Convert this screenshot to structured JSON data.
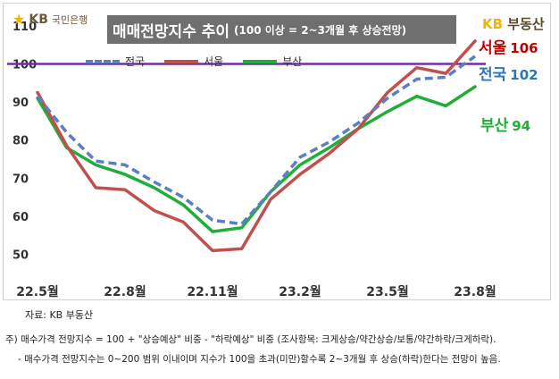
{
  "header": {
    "logo_text": "KB",
    "logo_bank": "국민은행",
    "title_main": "매매전망지수 추이",
    "title_sub": "(100 이상 = 2~3개월 후 상승전망)",
    "brand_kb": "KB",
    "brand_name": "부동산"
  },
  "colors": {
    "national": "#5a80c2",
    "seoul": "#c0504d",
    "busan": "#1fae37",
    "reference": "#7030a0",
    "title_bg": "#6f6f6f"
  },
  "end_labels": {
    "seoul": {
      "name": "서울",
      "value": "106"
    },
    "national": {
      "name": "전국",
      "value": "102"
    },
    "busan": {
      "name": "부산",
      "value": "94"
    }
  },
  "chart_data": {
    "type": "line",
    "title": "매매전망지수 추이",
    "subtitle": "(100 이상 = 2~3개월 후 상승전망)",
    "x": [
      "22.5",
      "22.6",
      "22.7",
      "22.8",
      "22.9",
      "22.10",
      "22.11",
      "22.12",
      "23.1",
      "23.2",
      "23.3",
      "23.4",
      "23.5",
      "23.6",
      "23.7",
      "23.8"
    ],
    "x_tick_labels": [
      "22.5월",
      "22.8월",
      "22.11월",
      "23.2월",
      "23.5월",
      "23.8월"
    ],
    "x_tick_index": [
      0,
      3,
      6,
      9,
      12,
      15
    ],
    "ylim": [
      45,
      113
    ],
    "y_ticks": [
      50,
      60,
      70,
      80,
      90,
      100,
      110
    ],
    "reference_line": 100,
    "grid": false,
    "legend_position": "top-left",
    "series": [
      {
        "key": "national",
        "name": "전국",
        "style": "dashed",
        "values": [
          91.5,
          82,
          74.5,
          73.5,
          69,
          65,
          59,
          58,
          66.5,
          75.5,
          79.5,
          84.5,
          91,
          96,
          96.5,
          102
        ]
      },
      {
        "key": "seoul",
        "name": "서울",
        "style": "solid",
        "values": [
          92.5,
          78.5,
          67.5,
          67,
          61.5,
          58.5,
          51,
          51.5,
          64.5,
          71,
          76.5,
          83,
          92.5,
          99,
          97.5,
          106
        ]
      },
      {
        "key": "busan",
        "name": "부산",
        "style": "solid",
        "values": [
          91,
          78,
          73.5,
          71,
          67.5,
          63,
          56,
          57,
          66.5,
          73.5,
          78,
          83,
          87.5,
          91.5,
          89,
          94
        ]
      }
    ]
  },
  "footnotes": {
    "source": "자료: KB 부동산",
    "note1": "주) 매수가격 전망지수 = 100 + \"상승예상\" 비중 - \"하락예상\" 비중 (조사항목: 크게상승/약간상승/보통/약간하락/크게하락).",
    "note2": "- 매수가격 전망지수는 0~200 범위 이내이며 지수가 100을 초과(미만)할수록 2~3개월 후 상승(하락)한다는 전망이 높음."
  }
}
